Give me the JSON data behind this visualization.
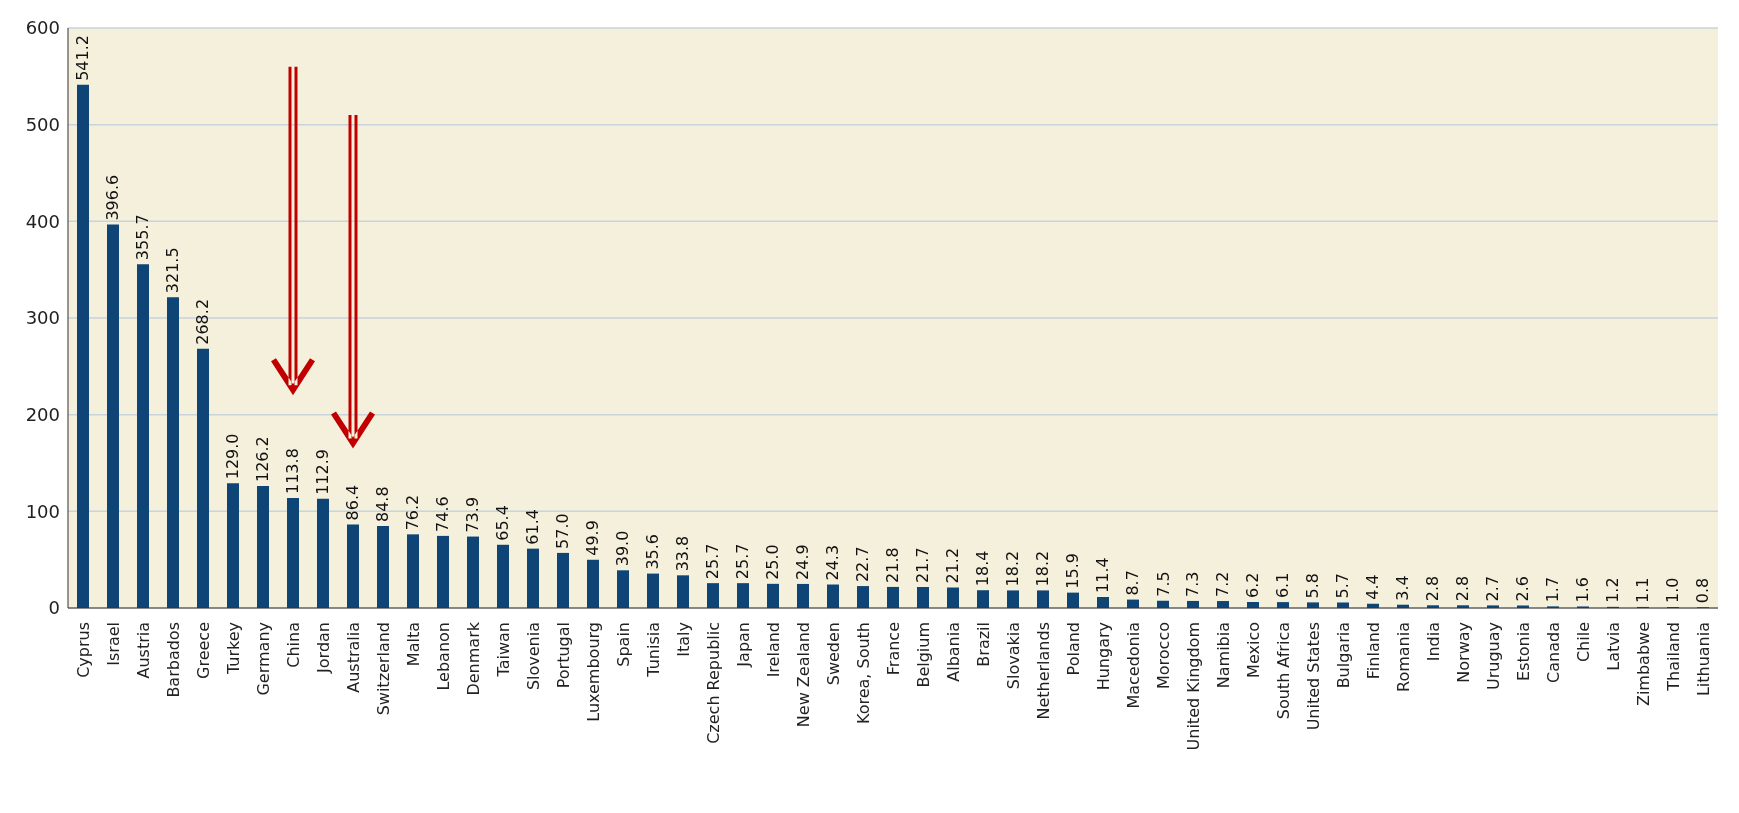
{
  "chart_data": {
    "type": "bar",
    "categories": [
      "Cyprus",
      "Israel",
      "Austria",
      "Barbados",
      "Greece",
      "Turkey",
      "Germany",
      "China",
      "Jordan",
      "Australia",
      "Switzerland",
      "Malta",
      "Lebanon",
      "Denmark",
      "Taiwan",
      "Slovenia",
      "Portugal",
      "Luxembourg",
      "Spain",
      "Tunisia",
      "Italy",
      "Czech Republic",
      "Japan",
      "Ireland",
      "New Zealand",
      "Sweden",
      "Korea, South",
      "France",
      "Belgium",
      "Albania",
      "Brazil",
      "Slovakia",
      "Netherlands",
      "Poland",
      "Hungary",
      "Macedonia",
      "Morocco",
      "United Kingdom",
      "Namibia",
      "Mexico",
      "South Africa",
      "United States",
      "Bulgaria",
      "Finland",
      "Romania",
      "India",
      "Norway",
      "Uruguay",
      "Estonia",
      "Canada",
      "Chile",
      "Latvia",
      "Zimbabwe",
      "Thailand",
      "Lithuania"
    ],
    "values": [
      541.2,
      396.6,
      355.7,
      321.5,
      268.2,
      129.0,
      126.2,
      113.8,
      112.9,
      86.4,
      84.8,
      76.2,
      74.6,
      73.9,
      65.4,
      61.4,
      57.0,
      49.9,
      39.0,
      35.6,
      33.8,
      25.7,
      25.7,
      25.0,
      24.9,
      24.3,
      22.7,
      21.8,
      21.7,
      21.2,
      18.4,
      18.2,
      18.2,
      15.9,
      11.4,
      8.7,
      7.5,
      7.3,
      7.2,
      6.2,
      6.1,
      5.8,
      5.7,
      4.4,
      3.4,
      2.8,
      2.8,
      2.7,
      2.6,
      1.7,
      1.6,
      1.2,
      1.1,
      1.0,
      0.8
    ],
    "value_labels": [
      "541.2",
      "396.6",
      "355.7",
      "321.5",
      "268.2",
      "129.0",
      "126.2",
      "113.8",
      "112.9",
      "86.4",
      "84.8",
      "76.2",
      "74.6",
      "73.9",
      "65.4",
      "61.4",
      "57.0",
      "49.9",
      "39.0",
      "35.6",
      "33.8",
      "25.7",
      "25.7",
      "25.0",
      "24.9",
      "24.3",
      "22.7",
      "21.8",
      "21.7",
      "21.2",
      "18.4",
      "18.2",
      "18.2",
      "15.9",
      "11.4",
      "8.7",
      "7.5",
      "7.3",
      "7.2",
      "6.2",
      "6.1",
      "5.8",
      "5.7",
      "4.4",
      "3.4",
      "2.8",
      "2.8",
      "2.7",
      "2.6",
      "1.7",
      "1.6",
      "1.2",
      "1.1",
      "1.0",
      "0.8"
    ],
    "color": "#0f4476",
    "ylim": [
      0,
      600
    ],
    "yticks": [
      0,
      100,
      200,
      300,
      400,
      500,
      600
    ],
    "grid": "y"
  }
}
